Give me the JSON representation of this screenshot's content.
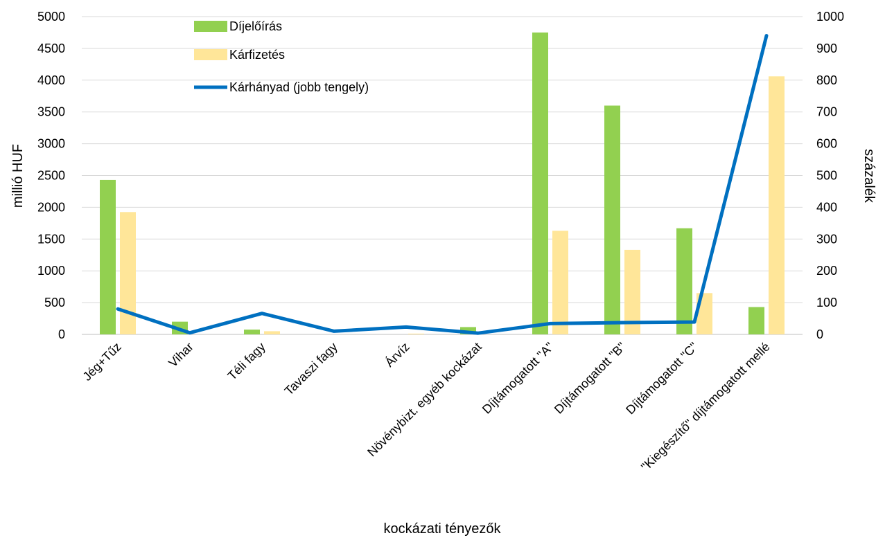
{
  "chart_data": {
    "type": "bar",
    "title": "",
    "xlabel": "kockázati tényezők",
    "ylabel": "millió HUF",
    "y2label": "százalék",
    "categories": [
      "Jég+Tűz",
      "Vihar",
      "Téli fagy",
      "Tavaszi fagy",
      "Árvíz",
      "Növénybizt. egyéb kockázat",
      "Díjtámogatott \"A\"",
      "Díjtámogatott \"B\"",
      "Díjtámogatott \"C\"",
      "\"Kiegészítő\" díjtámogatott mellé"
    ],
    "ylim": [
      0,
      5000
    ],
    "y2lim": [
      0,
      1000
    ],
    "yticks": [
      "0",
      "500",
      "1000",
      "1500",
      "2000",
      "2500",
      "3000",
      "3500",
      "4000",
      "4500",
      "5000"
    ],
    "y2ticks": [
      "0",
      "100",
      "200",
      "300",
      "400",
      "500",
      "600",
      "700",
      "800",
      "900",
      "1000"
    ],
    "grid": true,
    "legend_position": "top",
    "series": [
      {
        "name": "Díjelőírás",
        "type": "bar",
        "axis": "left",
        "color": "#92d050",
        "values": [
          2430,
          200,
          75,
          0,
          0,
          115,
          4750,
          3600,
          1670,
          430
        ]
      },
      {
        "name": "Kárfizetés",
        "type": "bar",
        "axis": "left",
        "color": "#ffe699",
        "values": [
          1925,
          0,
          50,
          0,
          12,
          0,
          1630,
          1330,
          650,
          4060
        ]
      },
      {
        "name": "Kárhányad (jobb tengely)",
        "type": "line",
        "axis": "right",
        "color": "#0070c0",
        "values": [
          80,
          5,
          66,
          10,
          23,
          4,
          34,
          37,
          39,
          940
        ]
      }
    ]
  }
}
